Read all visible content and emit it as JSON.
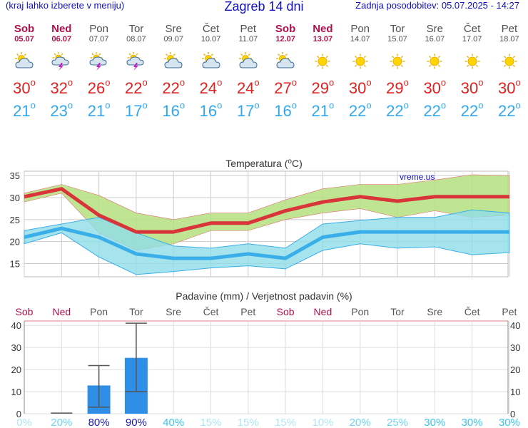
{
  "header": {
    "left_note": "(kraj lahko izberete v meniju)",
    "title": "Zagreb 14 dni",
    "updated": "Zadnja posodobitev: 05.07.2025 - 14:27"
  },
  "colors": {
    "weekend": "#b0104a",
    "weekday": "#505050",
    "max": "#e02020",
    "min": "#30a8f0"
  },
  "days": [
    {
      "name": "Sob",
      "date": "05.07",
      "icon": "partly-cloudy-icon",
      "max": "30",
      "min": "21",
      "weekend": true
    },
    {
      "name": "Ned",
      "date": "06.07",
      "icon": "thunderstorm-icon",
      "max": "32",
      "min": "23",
      "weekend": true
    },
    {
      "name": "Pon",
      "date": "07.07",
      "icon": "thunderstorm-icon",
      "max": "26",
      "min": "21",
      "weekend": false
    },
    {
      "name": "Tor",
      "date": "08.07",
      "icon": "thunderstorm-icon",
      "max": "22",
      "min": "17",
      "weekend": false
    },
    {
      "name": "Sre",
      "date": "09.07",
      "icon": "partly-cloudy-icon",
      "max": "22",
      "min": "16",
      "weekend": false
    },
    {
      "name": "Čet",
      "date": "10.07",
      "icon": "partly-cloudy-icon",
      "max": "24",
      "min": "16",
      "weekend": false
    },
    {
      "name": "Pet",
      "date": "11.07",
      "icon": "partly-cloudy-icon",
      "max": "24",
      "min": "17",
      "weekend": false
    },
    {
      "name": "Sob",
      "date": "12.07",
      "icon": "partly-cloudy-icon",
      "max": "27",
      "min": "16",
      "weekend": true
    },
    {
      "name": "Ned",
      "date": "13.07",
      "icon": "sun-icon",
      "max": "29",
      "min": "21",
      "weekend": true
    },
    {
      "name": "Pon",
      "date": "14.07",
      "icon": "sun-icon",
      "max": "30",
      "min": "22",
      "weekend": false
    },
    {
      "name": "Tor",
      "date": "15.07",
      "icon": "sun-icon",
      "max": "29",
      "min": "22",
      "weekend": false
    },
    {
      "name": "Sre",
      "date": "16.07",
      "icon": "sun-icon",
      "max": "30",
      "min": "22",
      "weekend": false
    },
    {
      "name": "Čet",
      "date": "17.07",
      "icon": "sun-icon",
      "max": "30",
      "min": "22",
      "weekend": false
    },
    {
      "name": "Pet",
      "date": "18.07",
      "icon": "sun-icon",
      "max": "30",
      "min": "22",
      "weekend": false
    }
  ],
  "chart_data": [
    {
      "type": "line",
      "title": "Temperatura (°C)",
      "watermark": "vreme.us",
      "ylim": [
        12,
        36
      ],
      "yticks": [
        15,
        20,
        25,
        30,
        35
      ],
      "grid": true,
      "series": [
        {
          "color": "#d8343a",
          "values": [
            30.2,
            32.0,
            26.0,
            22.2,
            22.2,
            24.2,
            24.2,
            27.0,
            29.0,
            30.2,
            29.2,
            30.2,
            30.2,
            30.2
          ]
        },
        {
          "color": "#b5e07f",
          "upper": [
            31.0,
            33.0,
            30.5,
            26.5,
            25.0,
            26.5,
            26.5,
            29.5,
            32.0,
            33.0,
            33.0,
            34.0,
            35.2,
            35.0
          ],
          "lower": [
            29.0,
            31.0,
            22.0,
            18.0,
            19.5,
            22.5,
            22.5,
            25.0,
            26.5,
            27.5,
            25.5,
            27.0,
            25.5,
            26.0
          ]
        },
        {
          "color": "#3aaee8",
          "values": [
            21.0,
            23.0,
            21.0,
            17.2,
            16.2,
            16.2,
            17.2,
            16.2,
            21.0,
            22.2,
            22.2,
            22.2,
            22.2,
            22.2
          ]
        },
        {
          "color": "#8fdde8",
          "upper": [
            22.5,
            24.0,
            25.5,
            22.0,
            19.0,
            18.5,
            19.5,
            18.5,
            24.0,
            24.8,
            25.5,
            25.5,
            27.2,
            26.5
          ],
          "lower": [
            19.5,
            22.0,
            16.5,
            12.5,
            13.2,
            14.0,
            14.5,
            13.8,
            18.0,
            19.5,
            18.5,
            18.8,
            17.0,
            17.5
          ]
        }
      ]
    },
    {
      "type": "bar",
      "title": "Padavine (mm) / Verjetnost padavin (%)",
      "ylim": [
        0,
        42
      ],
      "yticks": [
        0,
        10,
        20,
        30,
        40
      ],
      "categories": [
        "Sob",
        "Ned",
        "Pon",
        "Tor",
        "Sre",
        "Čet",
        "Pet",
        "Sob",
        "Ned",
        "Pon",
        "Tor",
        "Sre",
        "Čet",
        "Pet"
      ],
      "values": [
        0,
        0.3,
        12.8,
        25.3,
        0,
        0,
        0,
        0,
        0,
        0,
        0,
        0,
        0,
        0
      ],
      "error_low": [
        0,
        0.3,
        3.0,
        10.0,
        0,
        0,
        0,
        0,
        0,
        0,
        0,
        0,
        0,
        0
      ],
      "error_high": [
        0,
        0.3,
        21.8,
        41.0,
        0,
        0,
        0,
        0,
        0,
        0,
        0,
        0,
        0,
        0
      ],
      "probabilities": [
        "0%",
        "20%",
        "80%",
        "90%",
        "40%",
        "15%",
        "15%",
        "15%",
        "10%",
        "20%",
        "25%",
        "30%",
        "30%",
        "30%"
      ],
      "prob_colors": [
        "#aee6f8",
        "#6dd4f4",
        "#1a1ab0",
        "#1a1ab0",
        "#3cc4f0",
        "#aee6f8",
        "#aee6f8",
        "#aee6f8",
        "#aee6f8",
        "#6dd4f4",
        "#6dd4f4",
        "#3cc4f0",
        "#3cc4f0",
        "#3cc4f0"
      ],
      "bar_color": "#2f8fe6"
    }
  ]
}
